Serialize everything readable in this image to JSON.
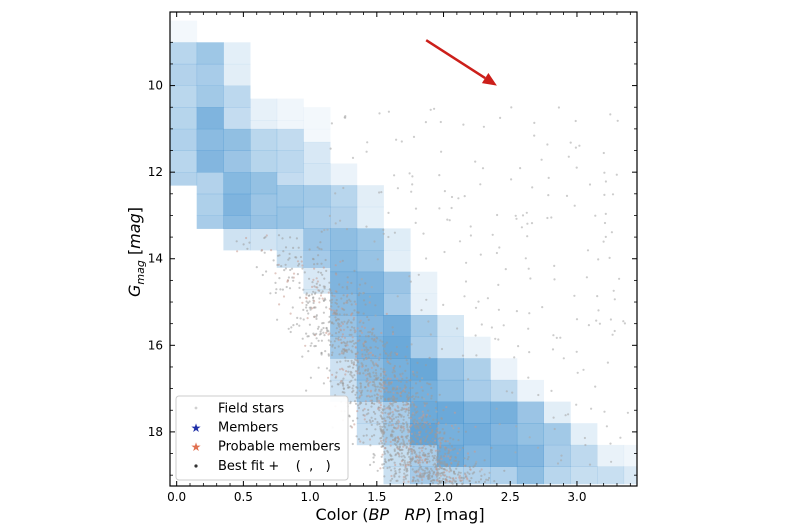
{
  "chart_data": {
    "type": "scatter",
    "xlabel_parts": [
      "Color (",
      "BP",
      "   ",
      "RP",
      ") [mag]"
    ],
    "ylabel_parts": [
      "G",
      "mag",
      " [",
      "mag",
      "]"
    ],
    "xlim": [
      -0.05,
      3.45
    ],
    "ylim": [
      19.25,
      8.3
    ],
    "y_inverted": true,
    "xticks": [
      0.0,
      0.5,
      1.0,
      1.5,
      2.0,
      2.5,
      3.0
    ],
    "xtick_labels": [
      "0.0",
      "0.5",
      "1.0",
      "1.5",
      "2.0",
      "2.5",
      "3.0"
    ],
    "yticks": [
      10,
      12,
      14,
      16,
      18
    ],
    "ytick_labels": [
      "10",
      "12",
      "14",
      "16",
      "18"
    ],
    "grid": false,
    "legend_position": "bottom-left",
    "legend": [
      {
        "label": "Field stars",
        "marker": "dot",
        "color": "#c8c8c8"
      },
      {
        "label": "Members",
        "marker": "star",
        "color": "#1f2fa8"
      },
      {
        "label": "Probable members",
        "marker": "star",
        "color": "#e07050"
      },
      {
        "label": "Best fit +    (  ,   )",
        "marker": "dot",
        "color": "#333333"
      }
    ],
    "annotation": {
      "type": "arrow",
      "color": "#cc1f1a",
      "from": [
        1.87,
        8.95
      ],
      "to": [
        2.4,
        10.0
      ]
    },
    "density_grid": {
      "x_edges": [
        -0.05,
        0.15,
        0.35,
        0.55,
        0.75,
        0.95,
        1.15,
        1.35,
        1.55,
        1.75,
        1.95,
        2.15,
        2.35,
        2.55,
        2.75,
        2.95,
        3.15,
        3.35,
        3.45
      ],
      "y_cell": 0.5,
      "columns": [
        {
          "ranges": [
            [
              8.5,
              9.0,
              0.06
            ],
            [
              9.0,
              12.3,
              0.38
            ]
          ]
        },
        {
          "ranges": [
            [
              9.0,
              10.5,
              0.48
            ],
            [
              10.5,
              12.0,
              0.62
            ],
            [
              12.0,
              13.3,
              0.42
            ]
          ]
        },
        {
          "ranges": [
            [
              9.0,
              10.0,
              0.15
            ],
            [
              10.0,
              11.0,
              0.32
            ],
            [
              11.0,
              12.0,
              0.55
            ],
            [
              12.0,
              13.3,
              0.62
            ],
            [
              13.3,
              13.8,
              0.25
            ]
          ]
        },
        {
          "ranges": [
            [
              10.3,
              11.0,
              0.12
            ],
            [
              11.0,
              12.0,
              0.38
            ],
            [
              12.0,
              13.3,
              0.52
            ],
            [
              13.3,
              13.8,
              0.22
            ]
          ]
        },
        {
          "ranges": [
            [
              10.3,
              11.0,
              0.08
            ],
            [
              11.0,
              12.3,
              0.32
            ],
            [
              12.3,
              13.3,
              0.5
            ],
            [
              13.3,
              14.2,
              0.28
            ]
          ]
        },
        {
          "ranges": [
            [
              10.5,
              11.3,
              0.06
            ],
            [
              11.3,
              12.3,
              0.22
            ],
            [
              12.3,
              13.3,
              0.45
            ],
            [
              13.3,
              14.2,
              0.5
            ],
            [
              14.2,
              14.8,
              0.2
            ]
          ]
        },
        {
          "ranges": [
            [
              11.8,
              12.3,
              0.1
            ],
            [
              12.3,
              13.3,
              0.38
            ],
            [
              13.3,
              15.3,
              0.62
            ],
            [
              15.3,
              16.3,
              0.52
            ],
            [
              16.3,
              17.3,
              0.25
            ]
          ]
        },
        {
          "ranges": [
            [
              12.3,
              13.3,
              0.15
            ],
            [
              13.3,
              14.3,
              0.5
            ],
            [
              14.3,
              16.3,
              0.68
            ],
            [
              16.3,
              17.3,
              0.55
            ],
            [
              17.3,
              18.3,
              0.3
            ]
          ]
        },
        {
          "ranges": [
            [
              13.3,
              14.3,
              0.15
            ],
            [
              14.3,
              15.3,
              0.5
            ],
            [
              15.3,
              17.3,
              0.72
            ],
            [
              17.3,
              18.3,
              0.48
            ],
            [
              18.3,
              19.2,
              0.28
            ]
          ]
        },
        {
          "ranges": [
            [
              14.3,
              15.3,
              0.12
            ],
            [
              15.3,
              16.3,
              0.45
            ],
            [
              16.3,
              18.3,
              0.75
            ],
            [
              18.3,
              19.2,
              0.45
            ]
          ]
        },
        {
          "ranges": [
            [
              15.3,
              16.3,
              0.22
            ],
            [
              16.3,
              17.3,
              0.58
            ],
            [
              17.3,
              18.8,
              0.72
            ],
            [
              18.8,
              19.2,
              0.4
            ]
          ]
        },
        {
          "ranges": [
            [
              15.8,
              16.3,
              0.12
            ],
            [
              16.3,
              17.3,
              0.42
            ],
            [
              17.3,
              18.8,
              0.7
            ],
            [
              18.8,
              19.2,
              0.4
            ]
          ]
        },
        {
          "ranges": [
            [
              16.3,
              16.8,
              0.1
            ],
            [
              16.8,
              17.3,
              0.35
            ],
            [
              17.3,
              18.8,
              0.68
            ],
            [
              18.8,
              19.2,
              0.38
            ]
          ]
        },
        {
          "ranges": [
            [
              16.8,
              17.3,
              0.1
            ],
            [
              17.3,
              18.3,
              0.55
            ],
            [
              18.3,
              19.2,
              0.6
            ]
          ]
        },
        {
          "ranges": [
            [
              17.3,
              17.8,
              0.15
            ],
            [
              17.8,
              18.8,
              0.45
            ],
            [
              18.8,
              19.2,
              0.35
            ]
          ]
        },
        {
          "ranges": [
            [
              17.8,
              18.3,
              0.15
            ],
            [
              18.3,
              19.2,
              0.32
            ]
          ]
        },
        {
          "ranges": [
            [
              18.3,
              18.8,
              0.12
            ],
            [
              18.8,
              19.2,
              0.28
            ]
          ]
        },
        {
          "ranges": [
            [
              18.3,
              18.8,
              0.08
            ],
            [
              18.8,
              19.2,
              0.18
            ]
          ]
        }
      ]
    }
  }
}
